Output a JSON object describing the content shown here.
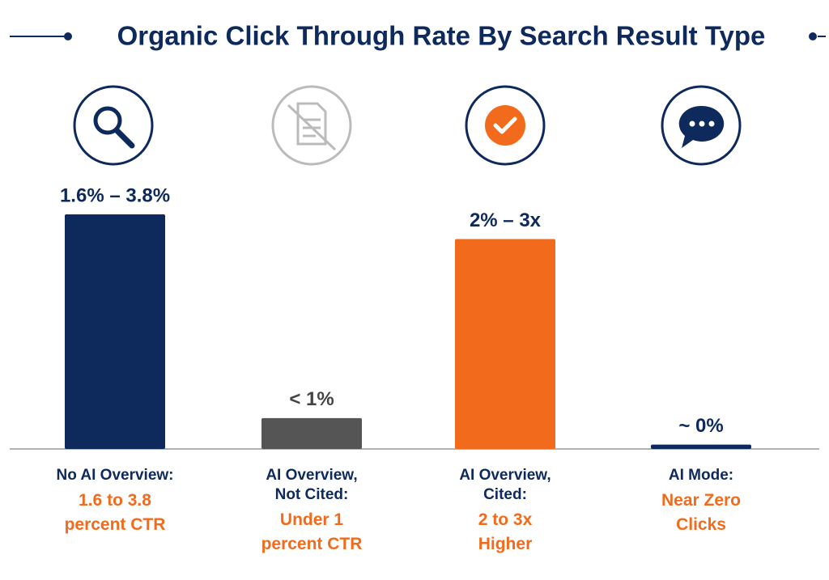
{
  "chart_data": {
    "type": "bar",
    "title": "Organic Click Through Rate By Search Result Type",
    "categories": [
      "No AI Overview:",
      "AI Overview, Not Cited:",
      "AI Overview, Cited:",
      "AI Mode:"
    ],
    "notes": [
      "1.6 to 3.8 percent CTR",
      "Under 1 percent CTR",
      "2 to 3x Higher",
      "Near Zero Clicks"
    ],
    "values": [
      3.8,
      0.5,
      3.4,
      0.07
    ],
    "value_labels": [
      "1.6% – 3.8%",
      "< 1%",
      "2% – 3x",
      "~ 0%"
    ],
    "colors": [
      "#0e2a5c",
      "#555555",
      "#f26b1d",
      "#0e2a5c"
    ]
  }
}
